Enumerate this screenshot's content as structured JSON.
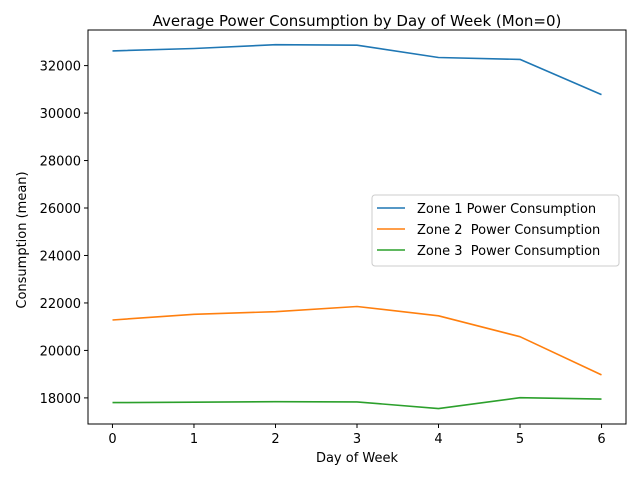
{
  "chart_data": {
    "type": "line",
    "title": "Average Power Consumption by Day of Week (Mon=0)",
    "xlabel": "Day of Week",
    "ylabel": "Consumption (mean)",
    "x": [
      0,
      1,
      2,
      3,
      4,
      5,
      6
    ],
    "xlim": [
      -0.3,
      6.3
    ],
    "ylim": [
      16900,
      33500
    ],
    "xticks": [
      0,
      1,
      2,
      3,
      4,
      5,
      6
    ],
    "yticks": [
      18000,
      20000,
      22000,
      24000,
      26000,
      28000,
      30000,
      32000
    ],
    "legend_position": "center-right",
    "grid": false,
    "series": [
      {
        "name": "Zone 1 Power Consumption",
        "color": "#1f77b4",
        "values": [
          32620,
          32720,
          32880,
          32860,
          32340,
          32260,
          30780
        ]
      },
      {
        "name": "Zone 2  Power Consumption",
        "color": "#ff7f0e",
        "values": [
          21280,
          21520,
          21630,
          21850,
          21460,
          20580,
          18970
        ]
      },
      {
        "name": "Zone 3  Power Consumption",
        "color": "#2ca02c",
        "values": [
          17800,
          17820,
          17840,
          17830,
          17550,
          18010,
          17950
        ]
      }
    ]
  }
}
